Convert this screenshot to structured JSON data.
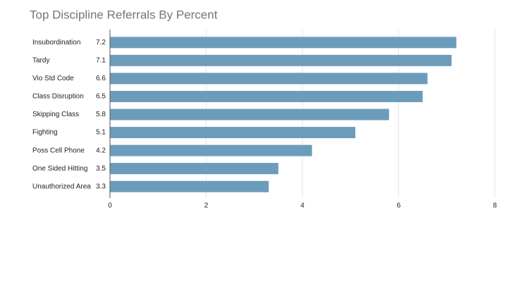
{
  "chart_data": {
    "type": "bar",
    "orientation": "horizontal",
    "title": "Top Discipline Referrals By Percent",
    "categories": [
      "Insubordination",
      "Tardy",
      "Vio Std Code",
      "Class Disruption",
      "Skipping Class",
      "Fighting",
      "Poss Cell Phone",
      "One Sided Hitting",
      "Unauthorized Area"
    ],
    "values": [
      7.2,
      7.1,
      6.6,
      6.5,
      5.8,
      5.1,
      4.2,
      3.5,
      3.3
    ],
    "color": "#6b9dbb",
    "xlim": [
      0,
      8
    ],
    "xticks": [
      0,
      2,
      4,
      6,
      8
    ],
    "grid": true
  }
}
